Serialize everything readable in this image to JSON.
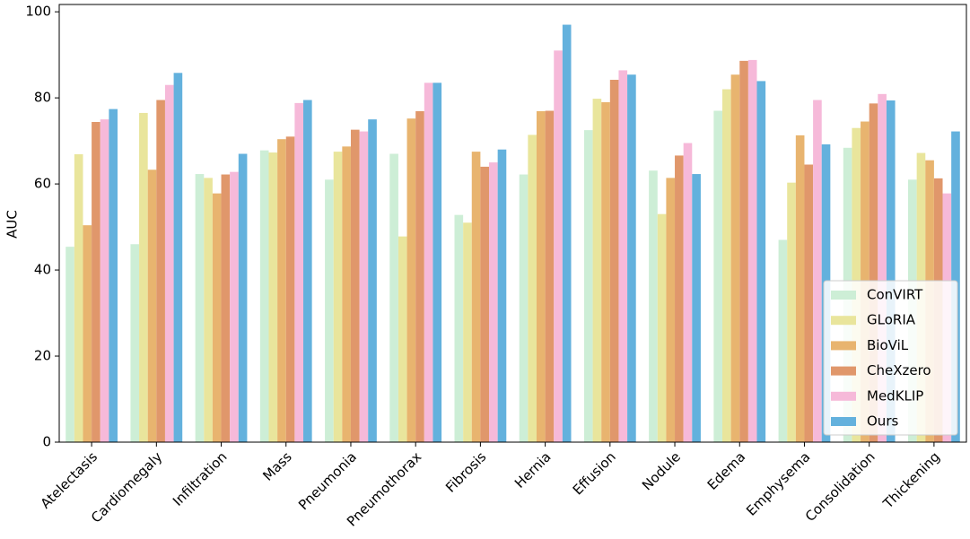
{
  "chart_data": {
    "type": "bar",
    "categories": [
      "Atelectasis",
      "Cardiomegaly",
      "Infiltration",
      "Mass",
      "Pneumonia",
      "Pneumothorax",
      "Fibrosis",
      "Hernia",
      "Effusion",
      "Nodule",
      "Edema",
      "Emphysema",
      "Consolidation",
      "Thickening"
    ],
    "series": [
      {
        "name": "ConVIRT",
        "color": "#cdeed6",
        "values": [
          45.4,
          46,
          62.3,
          67.8,
          61,
          67,
          52.8,
          62.2,
          72.5,
          63.1,
          77,
          47,
          68.4,
          61
        ]
      },
      {
        "name": "GLoRIA",
        "color": "#e9e59c",
        "values": [
          66.9,
          76.5,
          61.4,
          67.3,
          67.5,
          47.8,
          51,
          71.4,
          79.8,
          53,
          82,
          60.3,
          73,
          67.2
        ]
      },
      {
        "name": "BioViL",
        "color": "#e8b46f",
        "values": [
          50.4,
          63.3,
          57.8,
          70.4,
          68.7,
          75.2,
          67.5,
          76.9,
          79,
          61.4,
          85.4,
          71.3,
          74.5,
          65.5
        ]
      },
      {
        "name": "CheXzero",
        "color": "#e0976b",
        "values": [
          74.4,
          79.5,
          62.2,
          71,
          72.6,
          76.9,
          64,
          77,
          84.2,
          66.6,
          88.6,
          64.5,
          78.7,
          61.3
        ]
      },
      {
        "name": "MedKLIP",
        "color": "#f6b9d9",
        "values": [
          75,
          83,
          62.8,
          78.8,
          72.2,
          83.5,
          65,
          91,
          86.4,
          69.5,
          88.8,
          79.5,
          80.9,
          57.8
        ]
      },
      {
        "name": "Ours",
        "color": "#63b1dd",
        "values": [
          77.4,
          85.8,
          67,
          79.5,
          75,
          83.5,
          68,
          97,
          85.4,
          62.3,
          83.9,
          69.2,
          79.4,
          72.2
        ]
      }
    ],
    "y_label": "AUC",
    "ylim": [
      0,
      101.7
    ],
    "yticks": [
      0,
      20,
      40,
      60,
      80,
      100
    ],
    "legend": "lower right"
  }
}
